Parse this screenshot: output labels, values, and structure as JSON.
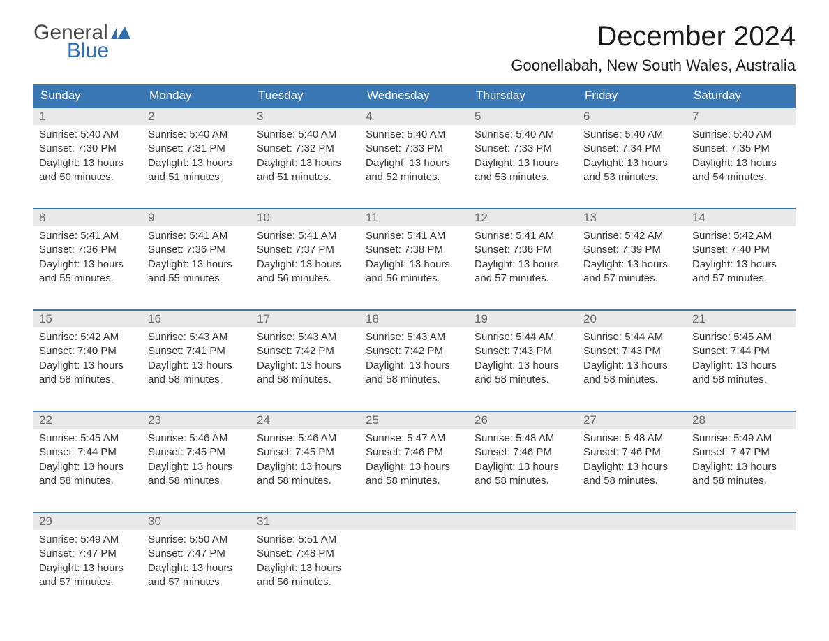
{
  "logo": {
    "word1": "General",
    "word2": "Blue",
    "brand_color": "#2f6fb0",
    "text_color": "#4a4a4a"
  },
  "title": "December 2024",
  "location": "Goonellabah, New South Wales, Australia",
  "colors": {
    "header_bg": "#3a78b5",
    "header_text": "#ffffff",
    "week_border": "#3a78b5",
    "daynum_bg": "#e9e9e9",
    "daynum_text": "#6a6a6a",
    "body_text": "#333333",
    "page_bg": "#ffffff"
  },
  "days_of_week": [
    "Sunday",
    "Monday",
    "Tuesday",
    "Wednesday",
    "Thursday",
    "Friday",
    "Saturday"
  ],
  "weeks": [
    [
      {
        "n": 1,
        "sunrise": "5:40 AM",
        "sunset": "7:30 PM",
        "daylight": "13 hours and 50 minutes."
      },
      {
        "n": 2,
        "sunrise": "5:40 AM",
        "sunset": "7:31 PM",
        "daylight": "13 hours and 51 minutes."
      },
      {
        "n": 3,
        "sunrise": "5:40 AM",
        "sunset": "7:32 PM",
        "daylight": "13 hours and 51 minutes."
      },
      {
        "n": 4,
        "sunrise": "5:40 AM",
        "sunset": "7:33 PM",
        "daylight": "13 hours and 52 minutes."
      },
      {
        "n": 5,
        "sunrise": "5:40 AM",
        "sunset": "7:33 PM",
        "daylight": "13 hours and 53 minutes."
      },
      {
        "n": 6,
        "sunrise": "5:40 AM",
        "sunset": "7:34 PM",
        "daylight": "13 hours and 53 minutes."
      },
      {
        "n": 7,
        "sunrise": "5:40 AM",
        "sunset": "7:35 PM",
        "daylight": "13 hours and 54 minutes."
      }
    ],
    [
      {
        "n": 8,
        "sunrise": "5:41 AM",
        "sunset": "7:36 PM",
        "daylight": "13 hours and 55 minutes."
      },
      {
        "n": 9,
        "sunrise": "5:41 AM",
        "sunset": "7:36 PM",
        "daylight": "13 hours and 55 minutes."
      },
      {
        "n": 10,
        "sunrise": "5:41 AM",
        "sunset": "7:37 PM",
        "daylight": "13 hours and 56 minutes."
      },
      {
        "n": 11,
        "sunrise": "5:41 AM",
        "sunset": "7:38 PM",
        "daylight": "13 hours and 56 minutes."
      },
      {
        "n": 12,
        "sunrise": "5:41 AM",
        "sunset": "7:38 PM",
        "daylight": "13 hours and 57 minutes."
      },
      {
        "n": 13,
        "sunrise": "5:42 AM",
        "sunset": "7:39 PM",
        "daylight": "13 hours and 57 minutes."
      },
      {
        "n": 14,
        "sunrise": "5:42 AM",
        "sunset": "7:40 PM",
        "daylight": "13 hours and 57 minutes."
      }
    ],
    [
      {
        "n": 15,
        "sunrise": "5:42 AM",
        "sunset": "7:40 PM",
        "daylight": "13 hours and 58 minutes."
      },
      {
        "n": 16,
        "sunrise": "5:43 AM",
        "sunset": "7:41 PM",
        "daylight": "13 hours and 58 minutes."
      },
      {
        "n": 17,
        "sunrise": "5:43 AM",
        "sunset": "7:42 PM",
        "daylight": "13 hours and 58 minutes."
      },
      {
        "n": 18,
        "sunrise": "5:43 AM",
        "sunset": "7:42 PM",
        "daylight": "13 hours and 58 minutes."
      },
      {
        "n": 19,
        "sunrise": "5:44 AM",
        "sunset": "7:43 PM",
        "daylight": "13 hours and 58 minutes."
      },
      {
        "n": 20,
        "sunrise": "5:44 AM",
        "sunset": "7:43 PM",
        "daylight": "13 hours and 58 minutes."
      },
      {
        "n": 21,
        "sunrise": "5:45 AM",
        "sunset": "7:44 PM",
        "daylight": "13 hours and 58 minutes."
      }
    ],
    [
      {
        "n": 22,
        "sunrise": "5:45 AM",
        "sunset": "7:44 PM",
        "daylight": "13 hours and 58 minutes."
      },
      {
        "n": 23,
        "sunrise": "5:46 AM",
        "sunset": "7:45 PM",
        "daylight": "13 hours and 58 minutes."
      },
      {
        "n": 24,
        "sunrise": "5:46 AM",
        "sunset": "7:45 PM",
        "daylight": "13 hours and 58 minutes."
      },
      {
        "n": 25,
        "sunrise": "5:47 AM",
        "sunset": "7:46 PM",
        "daylight": "13 hours and 58 minutes."
      },
      {
        "n": 26,
        "sunrise": "5:48 AM",
        "sunset": "7:46 PM",
        "daylight": "13 hours and 58 minutes."
      },
      {
        "n": 27,
        "sunrise": "5:48 AM",
        "sunset": "7:46 PM",
        "daylight": "13 hours and 58 minutes."
      },
      {
        "n": 28,
        "sunrise": "5:49 AM",
        "sunset": "7:47 PM",
        "daylight": "13 hours and 58 minutes."
      }
    ],
    [
      {
        "n": 29,
        "sunrise": "5:49 AM",
        "sunset": "7:47 PM",
        "daylight": "13 hours and 57 minutes."
      },
      {
        "n": 30,
        "sunrise": "5:50 AM",
        "sunset": "7:47 PM",
        "daylight": "13 hours and 57 minutes."
      },
      {
        "n": 31,
        "sunrise": "5:51 AM",
        "sunset": "7:48 PM",
        "daylight": "13 hours and 56 minutes."
      },
      null,
      null,
      null,
      null
    ]
  ],
  "labels": {
    "sunrise_prefix": "Sunrise: ",
    "sunset_prefix": "Sunset: ",
    "daylight_prefix": "Daylight: "
  }
}
